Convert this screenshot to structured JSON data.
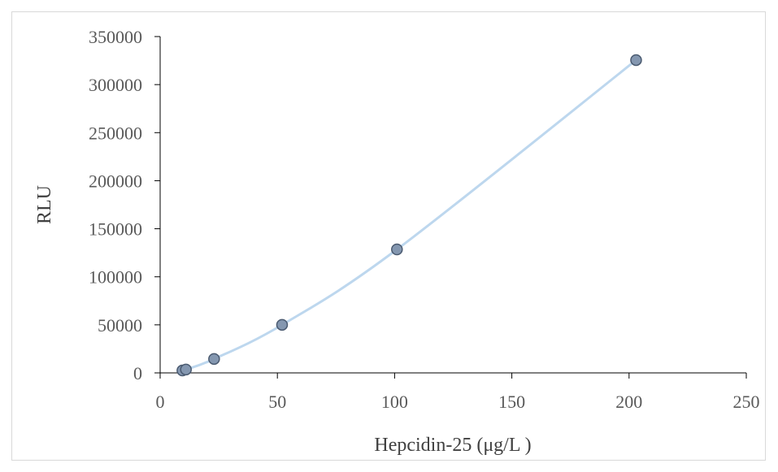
{
  "chart_data": {
    "type": "scatter",
    "title": "",
    "xlabel": "Hepcidin-25 (μg/L )",
    "ylabel": "RLU",
    "xlim": [
      0,
      250
    ],
    "ylim": [
      0,
      350000
    ],
    "x_ticks": [
      "0",
      "50",
      "100",
      "150",
      "200",
      "250"
    ],
    "y_ticks": [
      "0",
      "50000",
      "100000",
      "150000",
      "200000",
      "250000",
      "300000",
      "350000"
    ],
    "grid": false,
    "legend": "none",
    "series": [
      {
        "x": [
          9.5,
          11,
          23,
          52,
          101,
          203
        ],
        "y": [
          2500,
          3500,
          14500,
          50000,
          128500,
          325500
        ],
        "trendline": "smooth curve through points"
      }
    ],
    "colors": {
      "marker_fill": "#8497b0",
      "marker_stroke": "#4a5a70",
      "line": "#bdd7ee",
      "axis": "#000000",
      "tick_text": "#595959",
      "title_text": "#404040"
    }
  }
}
